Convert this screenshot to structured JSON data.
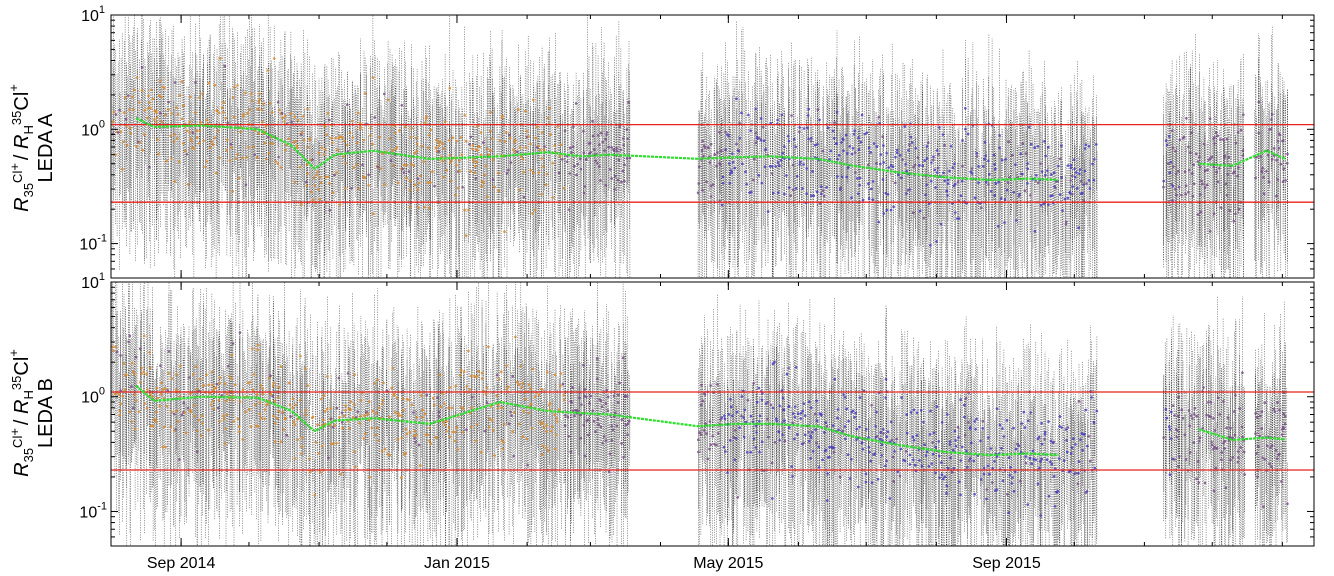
{
  "chart_data": {
    "type": "scatter",
    "x_axis": {
      "type": "date",
      "start": "2014-08-01",
      "end": "2016-01-15",
      "ticks": [
        {
          "date": "2014-09-01",
          "label": "Sep 2014"
        },
        {
          "date": "2015-01-01",
          "label": "Jan 2015"
        },
        {
          "date": "2015-05-01",
          "label": "May 2015"
        },
        {
          "date": "2015-09-01",
          "label": "Sep 2015"
        }
      ]
    },
    "y_axis": {
      "scale": "log",
      "range": [
        0.05,
        10
      ],
      "tick_labels": [
        {
          "base": "10",
          "exp": "-1",
          "value": 0.1
        },
        {
          "base": "10",
          "exp": "0",
          "value": 1
        },
        {
          "base": "10",
          "exp": "1",
          "value": 10
        }
      ]
    },
    "reference_lines": [
      1.1,
      0.23
    ],
    "colors": {
      "error_bars": "#000000",
      "points_early": "#d98a2b",
      "points_mid": "#7a4f8a",
      "points_late": "#4a3fbf",
      "running_mean": "#2ee02e",
      "reference_line": "#e8231c"
    },
    "panels": [
      {
        "id": "leda-a",
        "ylabel": {
          "r1": "R",
          "s1": "35",
          "c1": "Cl",
          "p1": "+",
          "sep": "/ ",
          "r2": "R",
          "s2": "H",
          "s3": "35",
          "c2": "Cl",
          "p2": "+",
          "line2": "LEDA A"
        },
        "running_mean": [
          {
            "date": "2014-08-12",
            "value": 1.25
          },
          {
            "date": "2014-08-20",
            "value": 1.05
          },
          {
            "date": "2014-09-10",
            "value": 1.08
          },
          {
            "date": "2014-10-05",
            "value": 1.0
          },
          {
            "date": "2014-10-20",
            "value": 0.72
          },
          {
            "date": "2014-10-30",
            "value": 0.45
          },
          {
            "date": "2014-11-08",
            "value": 0.6
          },
          {
            "date": "2014-11-25",
            "value": 0.65
          },
          {
            "date": "2014-12-20",
            "value": 0.55
          },
          {
            "date": "2015-01-20",
            "value": 0.58
          },
          {
            "date": "2015-02-10",
            "value": 0.63
          },
          {
            "date": "2015-02-25",
            "value": 0.58
          },
          {
            "date": "2015-03-10",
            "value": 0.6
          },
          {
            "date": "2015-04-15",
            "value": 0.55
          },
          {
            "date": "2015-05-05",
            "value": 0.57
          },
          {
            "date": "2015-05-20",
            "value": 0.58
          },
          {
            "date": "2015-06-10",
            "value": 0.55
          },
          {
            "date": "2015-06-25",
            "value": 0.48
          },
          {
            "date": "2015-07-15",
            "value": 0.42
          },
          {
            "date": "2015-08-05",
            "value": 0.38
          },
          {
            "date": "2015-08-25",
            "value": 0.36
          },
          {
            "date": "2015-09-10",
            "value": 0.37
          },
          {
            "date": "2015-09-25",
            "value": 0.36
          },
          {
            "date": "2015-11-25",
            "value": 0.5
          },
          {
            "date": "2015-12-10",
            "value": 0.48
          },
          {
            "date": "2015-12-25",
            "value": 0.65
          },
          {
            "date": "2016-01-05",
            "value": 0.52
          }
        ]
      },
      {
        "id": "leda-b",
        "ylabel": {
          "r1": "R",
          "s1": "35",
          "c1": "Cl",
          "p1": "+",
          "sep": "/ ",
          "r2": "R",
          "s2": "H",
          "s3": "35",
          "c2": "Cl",
          "p2": "+",
          "line2": "LEDA B"
        },
        "running_mean": [
          {
            "date": "2014-08-12",
            "value": 1.25
          },
          {
            "date": "2014-08-20",
            "value": 0.92
          },
          {
            "date": "2014-09-10",
            "value": 1.0
          },
          {
            "date": "2014-10-05",
            "value": 0.98
          },
          {
            "date": "2014-10-20",
            "value": 0.75
          },
          {
            "date": "2014-10-30",
            "value": 0.5
          },
          {
            "date": "2014-11-08",
            "value": 0.62
          },
          {
            "date": "2014-11-25",
            "value": 0.65
          },
          {
            "date": "2014-12-20",
            "value": 0.58
          },
          {
            "date": "2015-01-20",
            "value": 0.9
          },
          {
            "date": "2015-02-10",
            "value": 0.75
          },
          {
            "date": "2015-02-25",
            "value": 0.72
          },
          {
            "date": "2015-03-10",
            "value": 0.7
          },
          {
            "date": "2015-04-15",
            "value": 0.55
          },
          {
            "date": "2015-05-05",
            "value": 0.58
          },
          {
            "date": "2015-05-20",
            "value": 0.58
          },
          {
            "date": "2015-06-10",
            "value": 0.55
          },
          {
            "date": "2015-06-25",
            "value": 0.45
          },
          {
            "date": "2015-07-15",
            "value": 0.38
          },
          {
            "date": "2015-08-05",
            "value": 0.33
          },
          {
            "date": "2015-08-25",
            "value": 0.31
          },
          {
            "date": "2015-09-10",
            "value": 0.32
          },
          {
            "date": "2015-09-25",
            "value": 0.31
          },
          {
            "date": "2015-11-25",
            "value": 0.52
          },
          {
            "date": "2015-12-10",
            "value": 0.42
          },
          {
            "date": "2015-12-25",
            "value": 0.44
          },
          {
            "date": "2016-01-05",
            "value": 0.42
          }
        ]
      }
    ]
  }
}
